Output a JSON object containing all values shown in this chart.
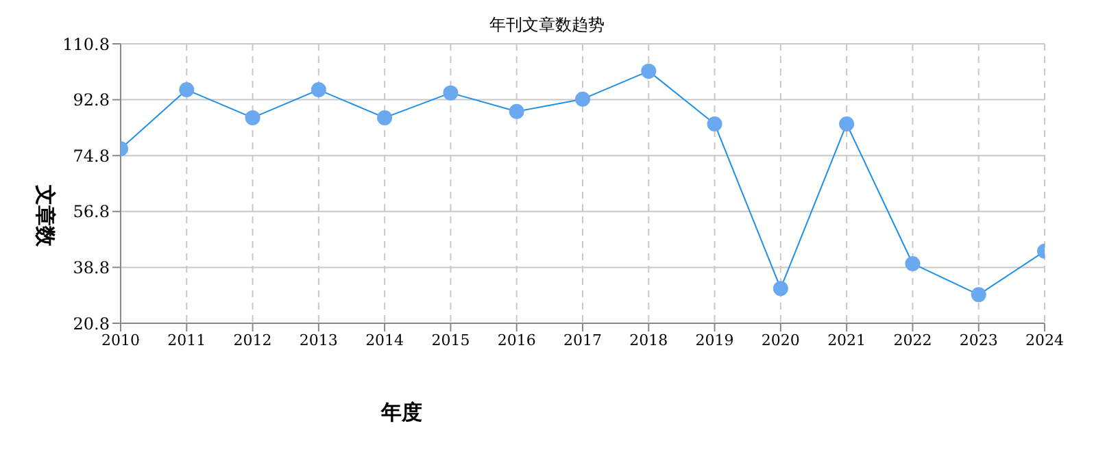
{
  "chart_data": {
    "type": "line",
    "title": "年刊文章数趋势",
    "xlabel": "年度",
    "ylabel": "文章数",
    "categories": [
      "2010",
      "2011",
      "2012",
      "2013",
      "2014",
      "2015",
      "2016",
      "2017",
      "2018",
      "2019",
      "2020",
      "2021",
      "2022",
      "2023",
      "2024"
    ],
    "series": [
      {
        "color": "#1e90e8",
        "values": [
          77,
          96,
          87,
          96,
          87,
          95,
          89,
          93,
          102,
          85,
          32,
          85,
          40,
          30,
          44
        ]
      }
    ],
    "ylim": [
      20.8,
      110.8
    ],
    "yticks": [
      20.8,
      38.8,
      56.8,
      74.8,
      92.8,
      110.8
    ],
    "grid": true,
    "marker": "circle",
    "line_style": "solid",
    "legend": false
  }
}
